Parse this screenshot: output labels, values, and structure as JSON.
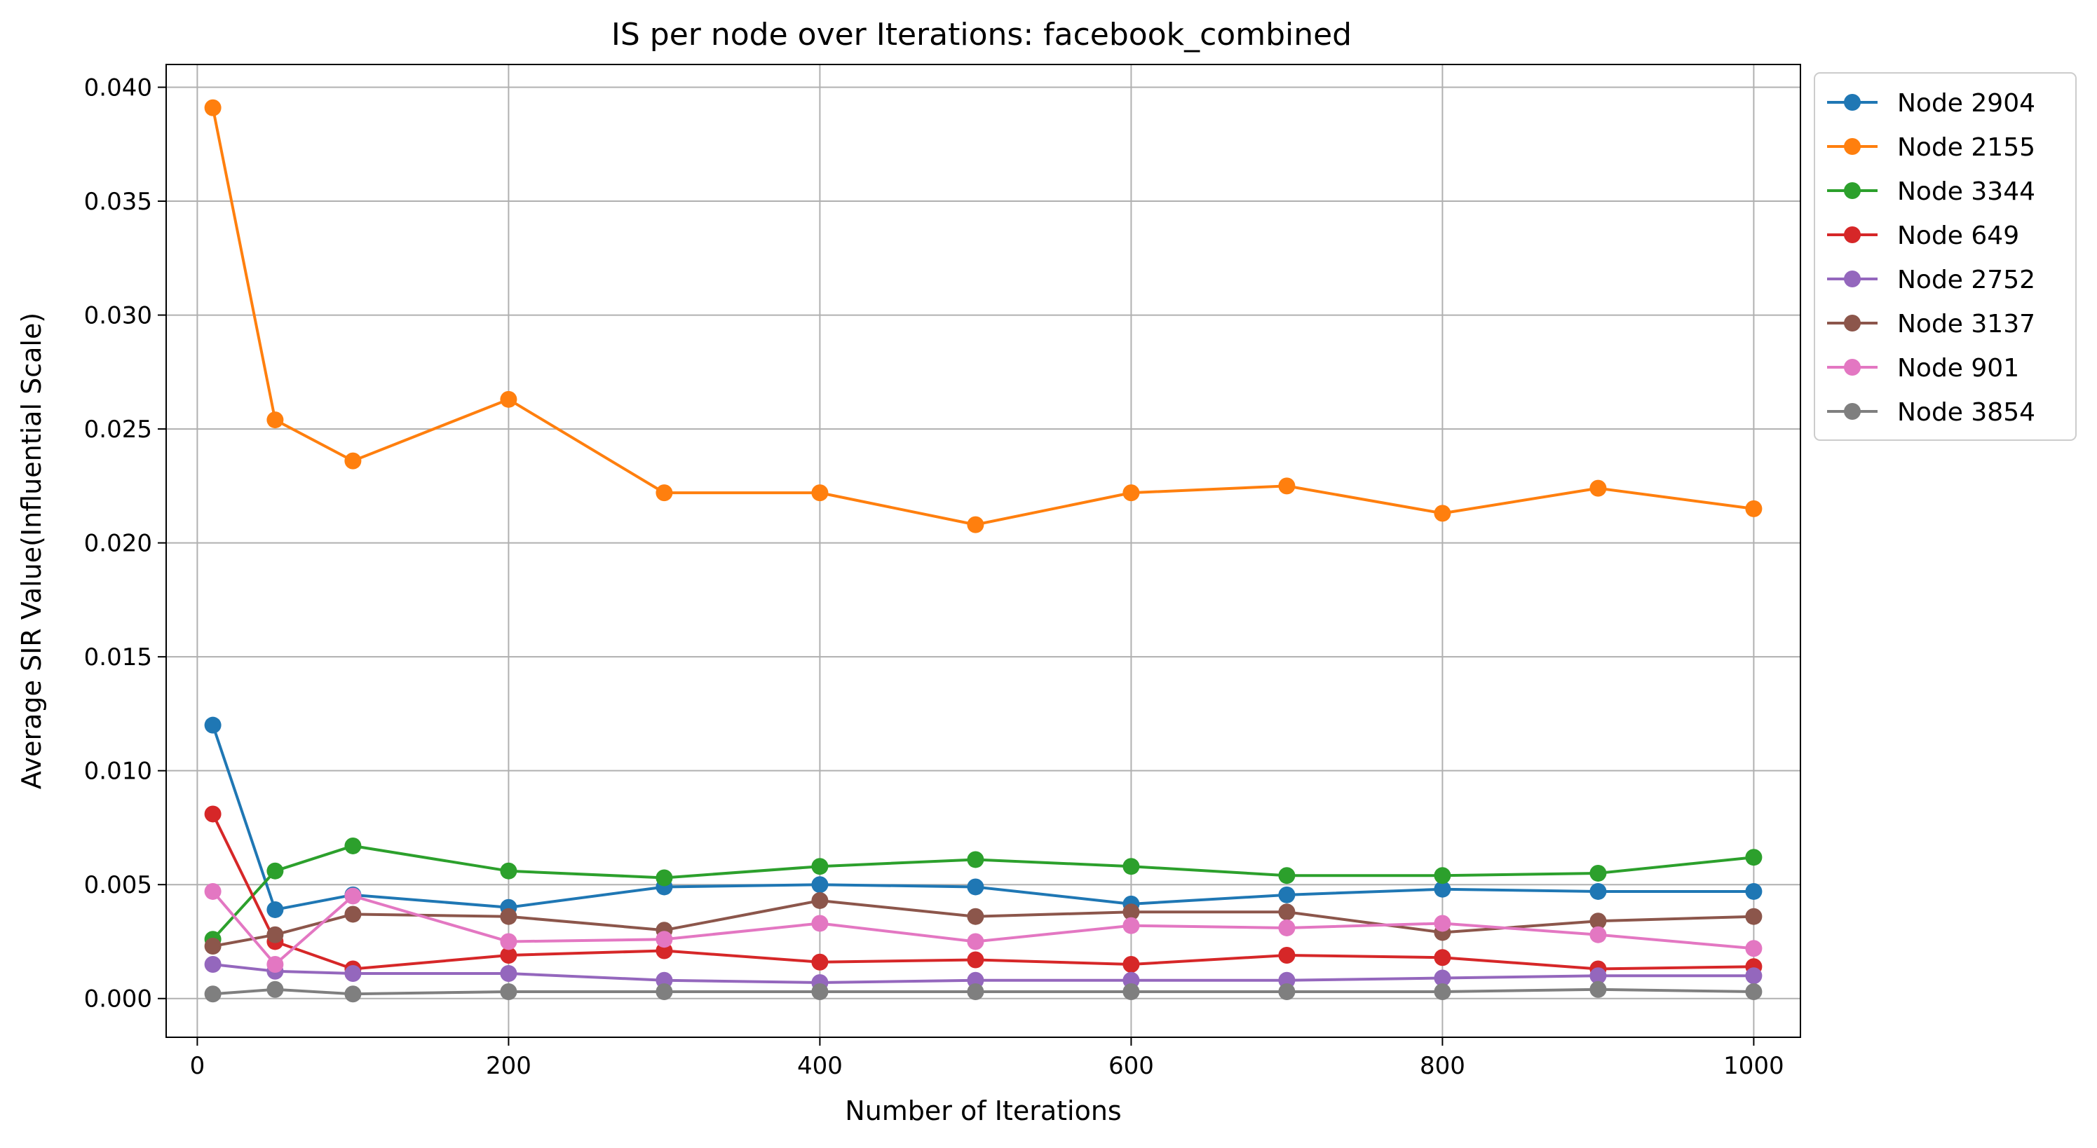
{
  "chart_data": {
    "type": "line",
    "title": "IS per node over Iterations: facebook_combined",
    "xlabel": "Number of Iterations",
    "ylabel": "Average SIR Value(Influential Scale)",
    "xlim": [
      -20,
      1030
    ],
    "ylim": [
      -0.0017,
      0.041
    ],
    "xticks": [
      0,
      200,
      400,
      600,
      800,
      1000
    ],
    "yticks": [
      0.0,
      0.005,
      0.01,
      0.015,
      0.02,
      0.025,
      0.03,
      0.035,
      0.04
    ],
    "xtick_labels": [
      "0",
      "200",
      "400",
      "600",
      "800",
      "1000"
    ],
    "ytick_labels": [
      "0.000",
      "0.005",
      "0.010",
      "0.015",
      "0.020",
      "0.025",
      "0.030",
      "0.035",
      "0.040"
    ],
    "grid": true,
    "legend_position": "outside-top-right",
    "x": [
      10,
      50,
      100,
      200,
      300,
      400,
      500,
      600,
      700,
      800,
      900,
      1000
    ],
    "series": [
      {
        "name": "Node 2904",
        "color": "#1f77b4",
        "values": [
          0.012,
          0.0039,
          0.00455,
          0.004,
          0.0049,
          0.005,
          0.0049,
          0.00415,
          0.00455,
          0.0048,
          0.0047,
          0.0047
        ]
      },
      {
        "name": "Node 2155",
        "color": "#ff7f0e",
        "values": [
          0.0391,
          0.0254,
          0.0236,
          0.0263,
          0.0222,
          0.0222,
          0.0208,
          0.0222,
          0.0225,
          0.0213,
          0.0224,
          0.0215
        ]
      },
      {
        "name": "Node 3344",
        "color": "#2ca02c",
        "values": [
          0.0026,
          0.0056,
          0.0067,
          0.0056,
          0.0053,
          0.0058,
          0.0061,
          0.0058,
          0.0054,
          0.0054,
          0.0055,
          0.0062
        ]
      },
      {
        "name": "Node 649",
        "color": "#d62728",
        "values": [
          0.0081,
          0.0025,
          0.0013,
          0.0019,
          0.0021,
          0.0016,
          0.0017,
          0.0015,
          0.0019,
          0.0018,
          0.0013,
          0.0014
        ]
      },
      {
        "name": "Node 2752",
        "color": "#9467bd",
        "values": [
          0.0015,
          0.0012,
          0.0011,
          0.0011,
          0.0008,
          0.0007,
          0.0008,
          0.0008,
          0.0008,
          0.0009,
          0.001,
          0.001
        ]
      },
      {
        "name": "Node 3137",
        "color": "#8c564b",
        "values": [
          0.0023,
          0.0028,
          0.0037,
          0.0036,
          0.003,
          0.0043,
          0.0036,
          0.0038,
          0.0038,
          0.0029,
          0.0034,
          0.0036
        ]
      },
      {
        "name": "Node 901",
        "color": "#e377c2",
        "values": [
          0.0047,
          0.0015,
          0.0045,
          0.0025,
          0.0026,
          0.0033,
          0.0025,
          0.0032,
          0.0031,
          0.0033,
          0.0028,
          0.0022
        ]
      },
      {
        "name": "Node 3854",
        "color": "#7f7f7f",
        "values": [
          0.0002,
          0.0004,
          0.0002,
          0.0003,
          0.0003,
          0.0003,
          0.0003,
          0.0003,
          0.0003,
          0.0003,
          0.0004,
          0.0003
        ]
      }
    ]
  }
}
